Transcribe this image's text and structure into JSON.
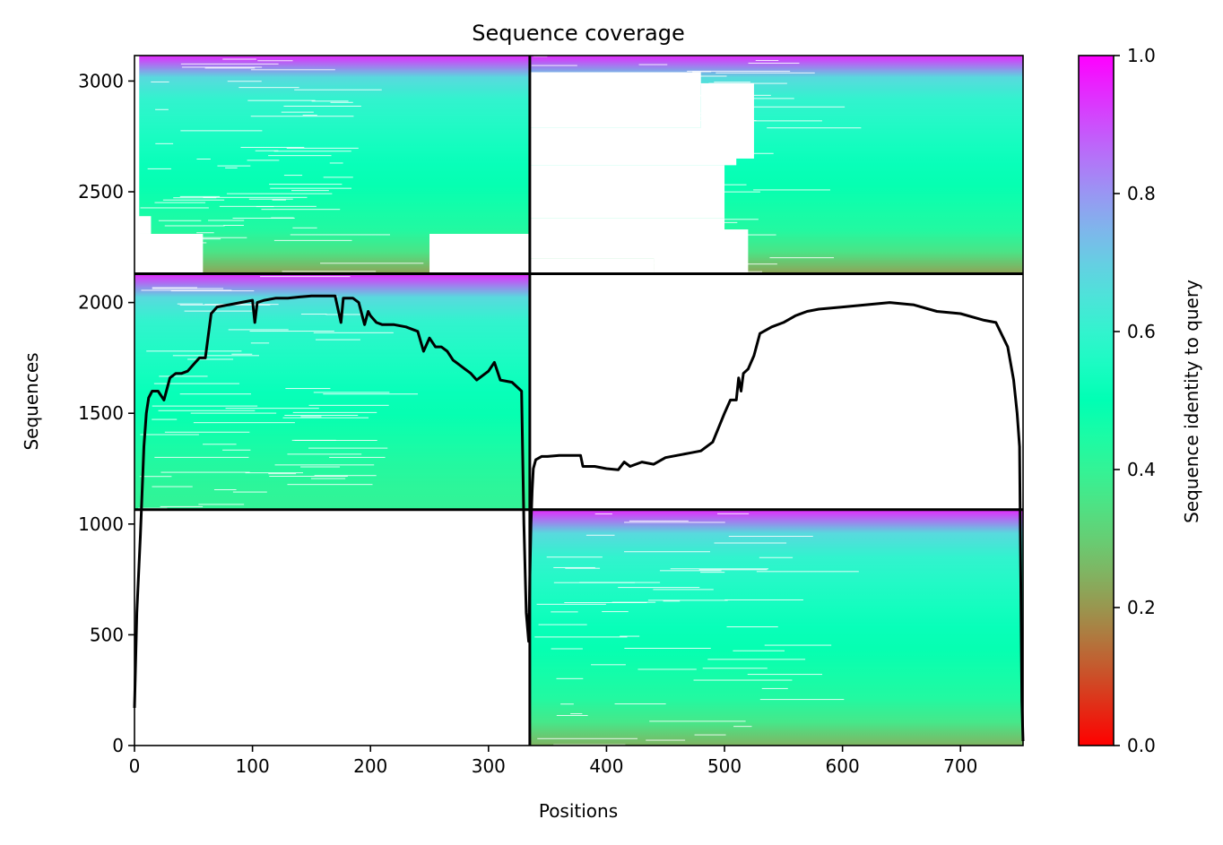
{
  "chart_data": {
    "type": "heatmap",
    "title": "Sequence coverage",
    "xlabel": "Positions",
    "ylabel": "Sequences",
    "xlim": [
      0,
      753
    ],
    "ylim": [
      0,
      3115
    ],
    "xticks": [
      0,
      100,
      200,
      300,
      400,
      500,
      600,
      700
    ],
    "yticks": [
      0,
      500,
      1000,
      1500,
      2000,
      2500,
      3000
    ],
    "grid": false,
    "colorbar": {
      "label": "Sequence identity to query",
      "range": [
        0,
        1
      ],
      "ticks": [
        "0.0",
        "0.2",
        "0.4",
        "0.6",
        "0.8",
        "1.0"
      ],
      "colormap": "rainbow_r"
    },
    "block_boundaries": {
      "x_split": 335,
      "y_splits": [
        1065,
        2130
      ]
    },
    "blocks": [
      {
        "x": [
          0,
          335
        ],
        "y": [
          2130,
          3115
        ],
        "identity_top": 0.95,
        "identity_bottom": 0.22
      },
      {
        "x": [
          335,
          753
        ],
        "y": [
          2130,
          3115
        ],
        "identity_top": 0.95,
        "identity_bottom": 0.22
      },
      {
        "x": [
          0,
          335
        ],
        "y": [
          1065,
          2130
        ],
        "identity_top": 0.95,
        "identity_bottom": 0.4
      },
      {
        "x": [
          335,
          753
        ],
        "y": [
          0,
          1065
        ],
        "identity_top": 0.95,
        "identity_bottom": 0.25
      }
    ],
    "coverage_line": {
      "x": [
        0,
        2,
        5,
        8,
        10,
        12,
        15,
        20,
        25,
        30,
        35,
        40,
        45,
        50,
        55,
        60,
        65,
        70,
        80,
        90,
        100,
        102,
        104,
        110,
        120,
        130,
        140,
        150,
        160,
        170,
        175,
        177,
        180,
        185,
        190,
        195,
        198,
        200,
        205,
        210,
        220,
        230,
        240,
        245,
        250,
        255,
        260,
        265,
        270,
        275,
        280,
        285,
        290,
        295,
        300,
        305,
        310,
        320,
        328,
        330,
        332,
        334,
        335,
        336,
        337,
        338,
        340,
        345,
        350,
        360,
        370,
        378,
        380,
        390,
        400,
        410,
        415,
        420,
        430,
        440,
        450,
        460,
        470,
        480,
        490,
        500,
        505,
        510,
        512,
        514,
        516,
        520,
        525,
        530,
        540,
        550,
        560,
        570,
        580,
        600,
        620,
        640,
        660,
        680,
        700,
        720,
        730,
        740,
        745,
        748,
        750,
        752,
        753
      ],
      "y": [
        170,
        600,
        950,
        1350,
        1500,
        1570,
        1600,
        1600,
        1560,
        1660,
        1680,
        1680,
        1690,
        1720,
        1750,
        1750,
        1950,
        1980,
        1990,
        2000,
        2010,
        1910,
        2000,
        2010,
        2020,
        2020,
        2025,
        2030,
        2030,
        2030,
        1910,
        2020,
        2020,
        2020,
        2000,
        1900,
        1960,
        1940,
        1910,
        1900,
        1900,
        1890,
        1870,
        1780,
        1840,
        1800,
        1800,
        1780,
        1740,
        1720,
        1700,
        1680,
        1650,
        1670,
        1690,
        1730,
        1650,
        1640,
        1600,
        1000,
        600,
        470,
        750,
        1000,
        1150,
        1250,
        1290,
        1305,
        1305,
        1310,
        1310,
        1310,
        1260,
        1260,
        1250,
        1245,
        1280,
        1260,
        1280,
        1270,
        1300,
        1310,
        1320,
        1330,
        1370,
        1500,
        1560,
        1560,
        1660,
        1600,
        1680,
        1700,
        1760,
        1860,
        1890,
        1910,
        1940,
        1960,
        1970,
        1980,
        1990,
        2000,
        1990,
        1960,
        1950,
        1920,
        1910,
        1800,
        1650,
        1500,
        1350,
        200,
        20
      ]
    }
  }
}
